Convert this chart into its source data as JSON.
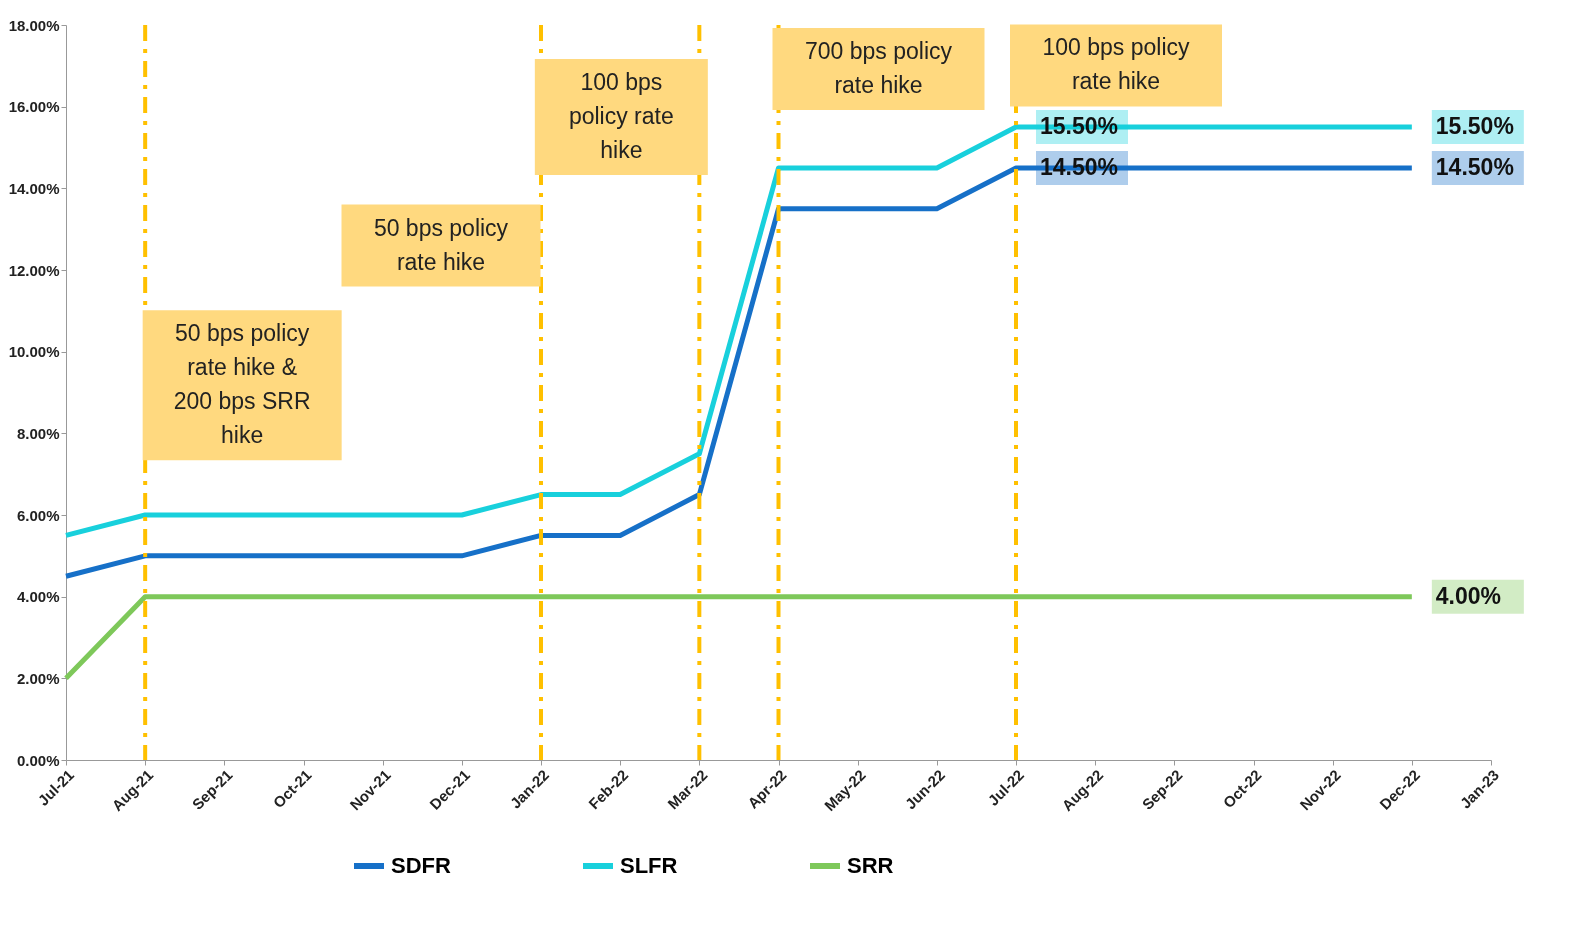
{
  "chart_data": {
    "type": "line",
    "categories": [
      "Jul-21",
      "Aug-21",
      "Sep-21",
      "Oct-21",
      "Nov-21",
      "Dec-21",
      "Jan-22",
      "Feb-22",
      "Mar-22",
      "Apr-22",
      "May-22",
      "Jun-22",
      "Jul-22",
      "Aug-22",
      "Sep-22",
      "Oct-22",
      "Nov-22",
      "Dec-22",
      "Jan-23"
    ],
    "series": [
      {
        "name": "SDFR",
        "color": "#1670c8",
        "values": [
          4.5,
          5,
          5,
          5,
          5,
          5,
          5.5,
          5.5,
          6.5,
          13.5,
          13.5,
          13.5,
          14.5,
          14.5,
          14.5,
          14.5,
          14.5,
          14.5,
          null
        ],
        "value_labels": [
          null,
          null,
          null,
          null,
          null,
          null,
          null,
          null,
          null,
          null,
          null,
          null,
          "14.50%",
          null,
          null,
          null,
          null,
          "14.50%",
          null
        ]
      },
      {
        "name": "SLFR",
        "color": "#18d0dc",
        "values": [
          5.5,
          6,
          6,
          6,
          6,
          6,
          6.5,
          6.5,
          7.5,
          14.5,
          14.5,
          14.5,
          15.5,
          15.5,
          15.5,
          15.5,
          15.5,
          15.5,
          null
        ],
        "value_labels": [
          null,
          null,
          null,
          null,
          null,
          null,
          null,
          null,
          null,
          null,
          null,
          null,
          "15.50%",
          null,
          null,
          null,
          null,
          "15.50%",
          null
        ]
      },
      {
        "name": "SRR",
        "color": "#7ec85a",
        "values": [
          2,
          4,
          4,
          4,
          4,
          4,
          4,
          4,
          4,
          4,
          4,
          4,
          4,
          4,
          4,
          4,
          4,
          4,
          null
        ],
        "value_labels": [
          null,
          null,
          null,
          null,
          null,
          null,
          null,
          null,
          null,
          null,
          null,
          null,
          null,
          null,
          null,
          null,
          null,
          "4.00%",
          null
        ]
      }
    ],
    "ylim": [
      0,
      18
    ],
    "yticks": [
      {
        "value": 0,
        "label": "0.00%"
      },
      {
        "value": 2,
        "label": "2.00%"
      },
      {
        "value": 4,
        "label": "4.00%"
      },
      {
        "value": 6,
        "label": "6.00%"
      },
      {
        "value": 8,
        "label": "8.00%"
      },
      {
        "value": 10,
        "label": "10.00%"
      },
      {
        "value": 12,
        "label": "12.00%"
      },
      {
        "value": 14,
        "label": "14.00%"
      },
      {
        "value": 16,
        "label": "16.00%"
      },
      {
        "value": 18,
        "label": "18.00%"
      }
    ],
    "ref_lines": [
      {
        "axis": "x",
        "value": "Aug-21",
        "label": "50 bps policy rate hike & 200 bps SRR hike",
        "color": "#ffc000",
        "line_style": "dashed"
      },
      {
        "axis": "x",
        "value": "Jan-22",
        "label": "50 bps policy rate hike",
        "color": "#ffc000",
        "line_style": "dashed"
      },
      {
        "axis": "x",
        "value": "Mar-22",
        "label": "100 bps policy rate hike",
        "color": "#ffc000",
        "line_style": "dashed"
      },
      {
        "axis": "x",
        "value": "Apr-22",
        "label": "700 bps policy rate hike",
        "color": "#ffc000",
        "line_style": "dashed"
      },
      {
        "axis": "x",
        "value": "Jul-22",
        "label": "100 bps policy rate hike",
        "color": "#ffc000",
        "line_style": "dashed"
      }
    ],
    "legend": "bottom",
    "grid": false,
    "marker": "none",
    "line_style": "solid"
  }
}
